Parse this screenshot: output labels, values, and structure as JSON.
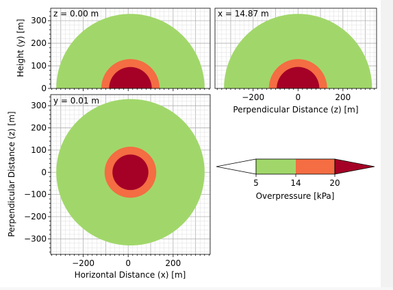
{
  "colors": {
    "band_5_14": "#a1d76a",
    "band_14_20": "#f46d43",
    "band_over_20": "#a50026",
    "under_5": "#ffffff"
  },
  "chart_data": [
    {
      "type": "contour",
      "view": "side",
      "annotation": "z = 0.00 m",
      "xlabel": "",
      "ylabel": "Height (y) [m]",
      "xlim": [
        -345,
        365
      ],
      "ylim": [
        0,
        355
      ],
      "xticks": [
        -200,
        0,
        200
      ],
      "yticks": [
        0,
        100,
        200,
        300
      ],
      "center": [
        10,
        0
      ],
      "radii": {
        "5": 330,
        "14": 130,
        "20": 95
      },
      "grid": true
    },
    {
      "type": "contour",
      "view": "front",
      "annotation": "x = 14.87 m",
      "xlabel": "Perpendicular Distance (z) [m]",
      "ylabel": "",
      "xlim": [
        -370,
        350
      ],
      "ylim": [
        0,
        355
      ],
      "xticks": [
        -200,
        0,
        200
      ],
      "xticklabels": [
        "−200",
        "0",
        "200"
      ],
      "center": [
        0,
        0
      ],
      "radii": {
        "5": 330,
        "14": 130,
        "20": 95
      },
      "grid": true
    },
    {
      "type": "contour",
      "view": "top",
      "annotation": "y = 0.01 m",
      "xlabel": "Horizontal Distance (x) [m]",
      "ylabel": "Perpendicular Distance (z) [m]",
      "xlim": [
        -345,
        365
      ],
      "ylim": [
        -370,
        350
      ],
      "xticks": [
        -200,
        0,
        200
      ],
      "xticklabels": [
        "−200",
        "0",
        "200"
      ],
      "yticks": [
        300,
        200,
        100,
        0,
        -100,
        -200,
        -300
      ],
      "yticklabels": [
        "300",
        "200",
        "100",
        "0",
        "−100",
        "−200",
        "−300"
      ],
      "center": [
        10,
        0
      ],
      "radii": {
        "5": 330,
        "14": 115,
        "20": 80
      },
      "grid": true
    }
  ],
  "colorbar": {
    "label": "Overpressure [kPa]",
    "ticks": [
      5,
      14,
      20
    ],
    "ticklabels": [
      "5",
      "14",
      "20"
    ],
    "extend": "both"
  }
}
